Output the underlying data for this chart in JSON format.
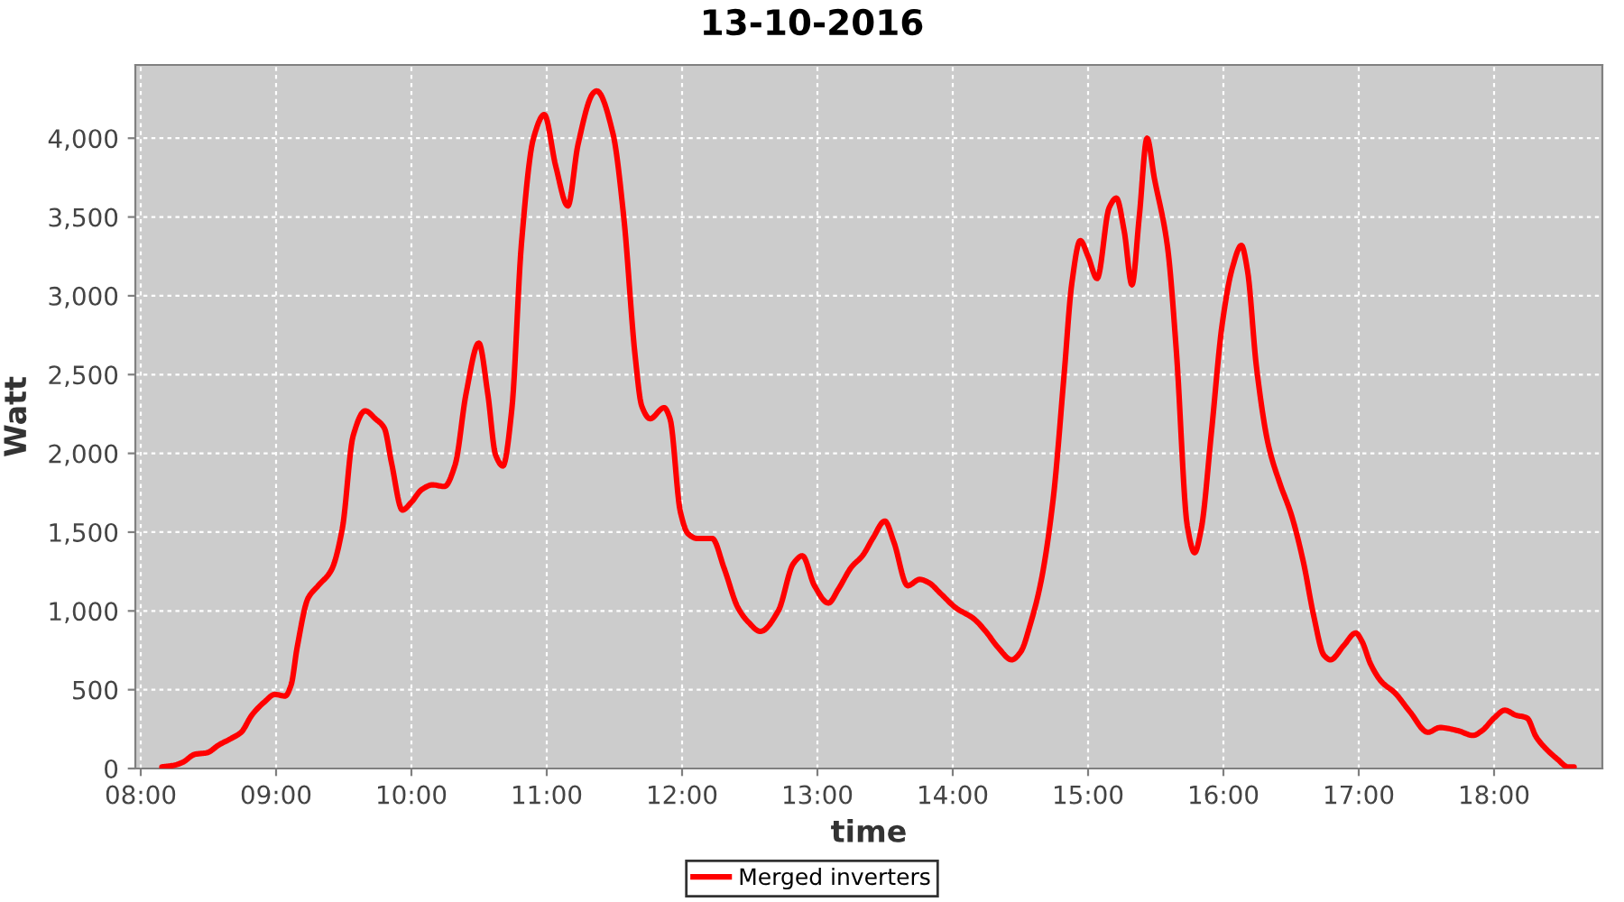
{
  "chart_data": {
    "type": "line",
    "title": "13-10-2016",
    "xlabel": "time",
    "ylabel": "Watt",
    "series": [
      {
        "name": "Merged inverters",
        "color": "#ff0000",
        "x": [
          8.156,
          8.244,
          8.311,
          8.4,
          8.489,
          8.578,
          8.667,
          8.742,
          8.822,
          8.911,
          8.991,
          9.067,
          9.111,
          9.156,
          9.236,
          9.311,
          9.409,
          9.489,
          9.569,
          9.658,
          9.733,
          9.8,
          9.853,
          9.933,
          10.0,
          10.076,
          10.156,
          10.244,
          10.324,
          10.404,
          10.498,
          10.564,
          10.622,
          10.676,
          10.742,
          10.813,
          10.902,
          10.982,
          11.067,
          11.156,
          11.231,
          11.347,
          11.369,
          11.489,
          11.569,
          11.653,
          11.702,
          11.764,
          11.867,
          11.911,
          11.987,
          12.044,
          12.111,
          12.222,
          12.311,
          12.413,
          12.489,
          12.578,
          12.711,
          12.822,
          12.889,
          12.978,
          13.081,
          13.156,
          13.253,
          13.333,
          13.409,
          13.498,
          13.564,
          13.667,
          13.756,
          13.822,
          13.911,
          14.022,
          14.156,
          14.244,
          14.333,
          14.436,
          14.502,
          14.578,
          14.653,
          14.742,
          14.822,
          14.88,
          14.942,
          15.0,
          15.067,
          15.156,
          15.209,
          15.267,
          15.324,
          15.378,
          15.436,
          15.489,
          15.587,
          15.653,
          15.733,
          15.787,
          15.836,
          15.911,
          15.991,
          16.067,
          16.133,
          16.178,
          16.244,
          16.333,
          16.413,
          16.502,
          16.591,
          16.667,
          16.742,
          16.791,
          16.889,
          16.978,
          17.022,
          17.089,
          17.169,
          17.267,
          17.378,
          17.511,
          17.6,
          17.733,
          17.844,
          17.911,
          18.0,
          18.08,
          18.156,
          18.244,
          18.311,
          18.378,
          18.467,
          18.547,
          18.591
        ],
        "values": [
          10,
          20,
          40,
          90,
          100,
          150,
          190,
          230,
          340,
          420,
          470,
          460,
          530,
          770,
          1080,
          1160,
          1260,
          1520,
          2110,
          2270,
          2220,
          2160,
          1940,
          1640,
          1690,
          1770,
          1800,
          1790,
          1930,
          2380,
          2700,
          2380,
          1990,
          1920,
          2280,
          3330,
          4000,
          4150,
          3820,
          3570,
          3960,
          4290,
          4300,
          4030,
          3500,
          2620,
          2300,
          2220,
          2290,
          2220,
          1630,
          1490,
          1460,
          1460,
          1270,
          1020,
          930,
          870,
          1000,
          1300,
          1350,
          1160,
          1050,
          1140,
          1280,
          1350,
          1460,
          1570,
          1440,
          1160,
          1200,
          1180,
          1110,
          1020,
          950,
          870,
          770,
          690,
          740,
          930,
          1190,
          1710,
          2490,
          3080,
          3350,
          3250,
          3110,
          3560,
          3620,
          3410,
          3070,
          3500,
          4000,
          3750,
          3310,
          2640,
          1540,
          1370,
          1520,
          2130,
          2820,
          3180,
          3320,
          3160,
          2550,
          2050,
          1820,
          1610,
          1310,
          970,
          720,
          690,
          780,
          860,
          810,
          660,
          550,
          480,
          360,
          230,
          260,
          240,
          210,
          240,
          320,
          370,
          340,
          320,
          200,
          130,
          60,
          10,
          10
        ]
      }
    ],
    "xlim": [
      7.96,
      18.8
    ],
    "xticks": [
      {
        "value": 8,
        "label": "08:00"
      },
      {
        "value": 9,
        "label": "09:00"
      },
      {
        "value": 10,
        "label": "10:00"
      },
      {
        "value": 11,
        "label": "11:00"
      },
      {
        "value": 12,
        "label": "12:00"
      },
      {
        "value": 13,
        "label": "13:00"
      },
      {
        "value": 14,
        "label": "14:00"
      },
      {
        "value": 15,
        "label": "15:00"
      },
      {
        "value": 16,
        "label": "16:00"
      },
      {
        "value": 17,
        "label": "17:00"
      },
      {
        "value": 18,
        "label": "18:00"
      }
    ],
    "ylim": [
      0,
      4465
    ],
    "yticks": [
      0,
      500,
      {
        "value": 1000,
        "label": "1,000"
      },
      {
        "value": 1500,
        "label": "1,500"
      },
      {
        "value": 2000,
        "label": "2,000"
      },
      {
        "value": 2500,
        "label": "2,500"
      },
      {
        "value": 3000,
        "label": "3,000"
      },
      {
        "value": 3500,
        "label": "3,500"
      },
      {
        "value": 4000,
        "label": "4,000"
      }
    ],
    "grid": true,
    "legend": "bottom",
    "line_style": "solid",
    "marker": "none"
  }
}
